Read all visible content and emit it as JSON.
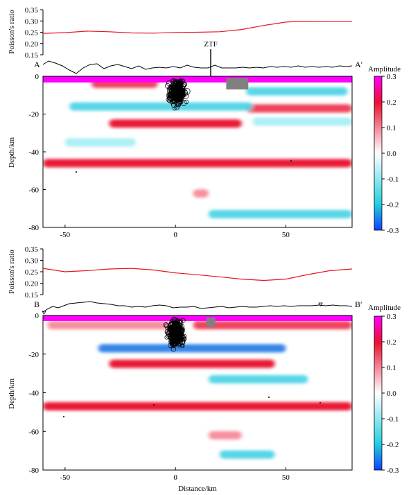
{
  "figure": {
    "colorbar_title": "Amplitude",
    "xlabel": "Distance/km",
    "ylabel_depth": "Depth/km",
    "ylabel_ratio": "Poisson's ratio",
    "fault_label": "ZTF"
  },
  "chart_data": [
    {
      "type": "line",
      "panel": "A-A' Poisson's ratio",
      "ylabel": "Poisson's ratio",
      "xlim": [
        -60,
        80
      ],
      "ylim": [
        0.15,
        0.35
      ],
      "yticks": [
        "0.35",
        "0.30",
        "0.25",
        "0.20",
        "0.15"
      ],
      "series": [
        {
          "color": "#e8141e",
          "x": [
            -60,
            -50,
            -40,
            -30,
            -20,
            -10,
            0,
            10,
            20,
            30,
            40,
            50,
            55,
            60,
            70,
            80
          ],
          "y": [
            0.245,
            0.248,
            0.255,
            0.252,
            0.247,
            0.246,
            0.249,
            0.25,
            0.252,
            0.262,
            0.28,
            0.295,
            0.298,
            0.298,
            0.297,
            0.297
          ]
        }
      ]
    },
    {
      "type": "heatmap",
      "panel": "A-A' profile",
      "start_label": "A",
      "end_label": "A′",
      "ylabel": "Depth/km",
      "xlim": [
        -60,
        80
      ],
      "ylim": [
        -80,
        0
      ],
      "xticks": [
        "-50",
        "0",
        "50"
      ],
      "yticks": [
        "0",
        "-20",
        "-40",
        "-60",
        "-80"
      ],
      "colorbar": {
        "title": "Amplitude",
        "range": [
          -0.3,
          0.3
        ],
        "ticks": [
          "0.3",
          "0.2",
          "0.1",
          "0.0",
          "-0.1",
          "-0.2",
          "-0.3"
        ]
      },
      "fault": {
        "label": "ZTF",
        "x": 15
      },
      "gray_block": {
        "x": [
          23,
          33
        ],
        "depth": [
          -1,
          -7
        ]
      },
      "earthquake_cluster": {
        "center_x": 1,
        "depth_range": [
          -2,
          -25
        ]
      },
      "anomalies": [
        {
          "sign": "positive",
          "x": [
            -38,
            -8
          ],
          "depth": -4,
          "amplitude": 0.15
        },
        {
          "sign": "positive",
          "x": [
            -30,
            30
          ],
          "depth": -25,
          "amplitude": 0.2
        },
        {
          "sign": "positive",
          "x": [
            -60,
            80
          ],
          "depth": -46,
          "amplitude": 0.18
        },
        {
          "sign": "positive",
          "x": [
            32,
            80
          ],
          "depth": -17,
          "amplitude": 0.15
        },
        {
          "sign": "positive",
          "x": [
            8,
            15
          ],
          "depth": -62,
          "amplitude": 0.1
        },
        {
          "sign": "negative",
          "x": [
            -48,
            35
          ],
          "depth": -16,
          "amplitude": -0.15
        },
        {
          "sign": "negative",
          "x": [
            32,
            78
          ],
          "depth": -8,
          "amplitude": -0.12
        },
        {
          "sign": "negative",
          "x": [
            -50,
            -18
          ],
          "depth": -35,
          "amplitude": -0.08
        },
        {
          "sign": "negative",
          "x": [
            35,
            80
          ],
          "depth": -24,
          "amplitude": -0.08
        },
        {
          "sign": "negative",
          "x": [
            15,
            80
          ],
          "depth": -73,
          "amplitude": -0.12
        }
      ]
    },
    {
      "type": "line",
      "panel": "B-B' Poisson's ratio",
      "ylabel": "Poisson's ratio",
      "xlim": [
        -60,
        80
      ],
      "ylim": [
        0.15,
        0.35
      ],
      "yticks": [
        "0.35",
        "0.30",
        "0.25",
        "0.20",
        "0.15"
      ],
      "series": [
        {
          "color": "#e8141e",
          "x": [
            -60,
            -50,
            -40,
            -30,
            -20,
            -10,
            0,
            10,
            20,
            30,
            40,
            50,
            60,
            70,
            80
          ],
          "y": [
            0.265,
            0.25,
            0.255,
            0.262,
            0.265,
            0.258,
            0.245,
            0.237,
            0.228,
            0.218,
            0.212,
            0.218,
            0.238,
            0.255,
            0.262
          ]
        }
      ]
    },
    {
      "type": "heatmap",
      "panel": "B-B' profile",
      "start_label": "B",
      "end_label": "B′",
      "ylabel": "Depth/km",
      "xlabel": "Distance/km",
      "xlim": [
        -60,
        80
      ],
      "ylim": [
        -80,
        0
      ],
      "xticks": [
        "-50",
        "0",
        "50"
      ],
      "yticks": [
        "0",
        "-20",
        "-40",
        "-60",
        "-80"
      ],
      "colorbar": {
        "title": "Amplitude",
        "range": [
          -0.3,
          0.3
        ],
        "ticks": [
          "0.3",
          "0.2",
          "0.1",
          "0.0",
          "-0.1",
          "-0.2",
          "-0.3"
        ]
      },
      "gray_block": {
        "x": [
          14,
          18
        ],
        "depth": [
          -1,
          -6
        ]
      },
      "earthquake_cluster": {
        "center_x": 0,
        "depth_range": [
          -2,
          -28
        ]
      },
      "anomalies": [
        {
          "sign": "positive",
          "x": [
            -58,
            -2
          ],
          "depth": -5,
          "amplitude": 0.12
        },
        {
          "sign": "positive",
          "x": [
            8,
            80
          ],
          "depth": -5,
          "amplitude": 0.15
        },
        {
          "sign": "positive",
          "x": [
            -30,
            45
          ],
          "depth": -25,
          "amplitude": 0.2
        },
        {
          "sign": "positive",
          "x": [
            -60,
            80
          ],
          "depth": -47,
          "amplitude": 0.18
        },
        {
          "sign": "positive",
          "x": [
            15,
            30
          ],
          "depth": -62,
          "amplitude": 0.08
        },
        {
          "sign": "negative",
          "x": [
            -35,
            50
          ],
          "depth": -17,
          "amplitude": -0.18
        },
        {
          "sign": "negative",
          "x": [
            15,
            60
          ],
          "depth": -33,
          "amplitude": -0.12
        },
        {
          "sign": "negative",
          "x": [
            20,
            45
          ],
          "depth": -72,
          "amplitude": -0.12
        }
      ]
    }
  ]
}
